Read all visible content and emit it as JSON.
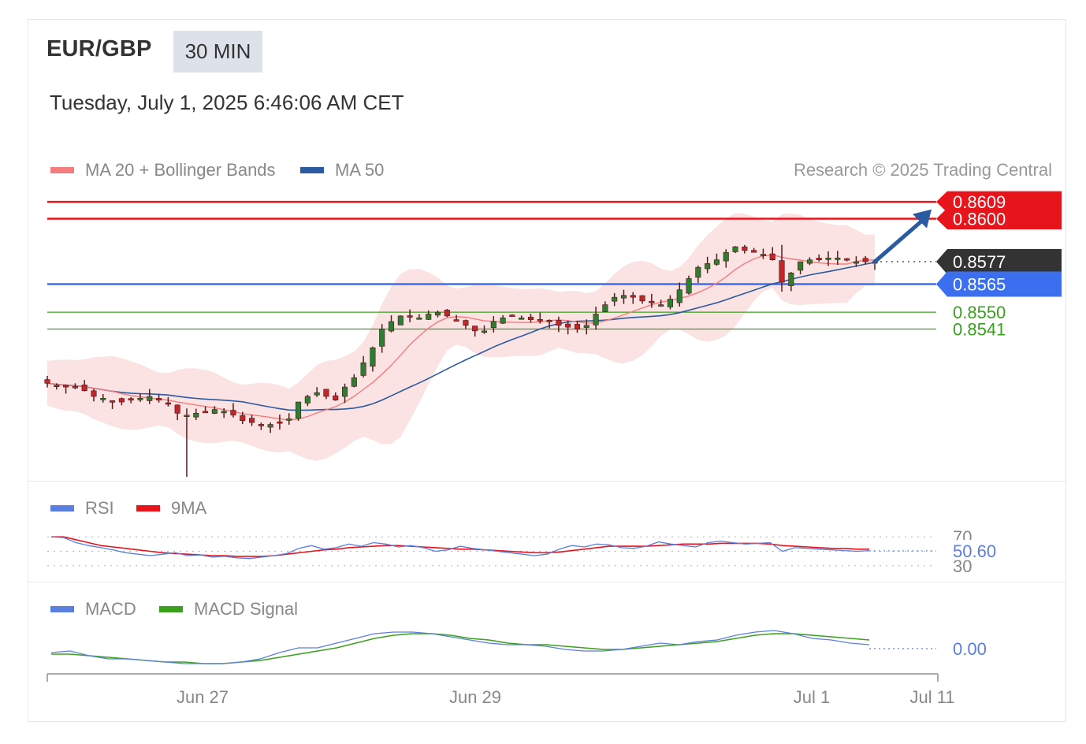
{
  "header": {
    "symbol": "EUR/GBP",
    "timeframe": "30 MIN",
    "timestamp": "Tuesday, July 1, 2025 6:46:06 AM CET"
  },
  "legend": {
    "main": [
      {
        "label": "MA 20 + Bollinger Bands",
        "color": "#f47c7c"
      },
      {
        "label": "MA 50",
        "color": "#2a5aa0"
      }
    ],
    "rsi": [
      {
        "label": "RSI",
        "color": "#5b7fe0"
      },
      {
        "label": "9MA",
        "color": "#e8141c"
      }
    ],
    "macd": [
      {
        "label": "MACD",
        "color": "#5b7fe0"
      },
      {
        "label": "MACD Signal",
        "color": "#3aa01e"
      }
    ],
    "copyright": "Research © 2025 Trading Central"
  },
  "colors": {
    "resistance": "#e8141c",
    "pivot": "#3b6ff0",
    "support": "#3aa01e",
    "current": "#333333",
    "arrow": "#2a5aa0",
    "band_fill": "#fbe3e3",
    "candle_up": "#2f7d32",
    "candle_down": "#c0262c"
  },
  "chart_data": {
    "type": "candlestick",
    "timeframe": "30 MIN",
    "x_axis": {
      "ticks": [
        "Jun 27",
        "Jun 29",
        "Jul 1",
        "Jul 11"
      ]
    },
    "price_range": [
      0.8462,
      0.862
    ],
    "levels": [
      {
        "label": "0.8609",
        "value": 0.8609,
        "kind": "resistance"
      },
      {
        "label": "0.8600",
        "value": 0.86,
        "kind": "resistance"
      },
      {
        "label": "0.8577",
        "value": 0.8577,
        "kind": "current"
      },
      {
        "label": "0.8565",
        "value": 0.8565,
        "kind": "pivot"
      },
      {
        "label": "0.8550",
        "value": 0.855,
        "kind": "support"
      },
      {
        "label": "0.8541",
        "value": 0.8541,
        "kind": "support"
      }
    ],
    "target_arrow": {
      "from": 0.8577,
      "to": 0.8605
    },
    "close_path": [
      0.8512,
      0.8511,
      0.851,
      0.851,
      0.8508,
      0.8505,
      0.8504,
      0.8502,
      0.8502,
      0.8503,
      0.8504,
      0.8505,
      0.8503,
      0.8501,
      0.8496,
      0.8495,
      0.8496,
      0.8497,
      0.8498,
      0.8497,
      0.8495,
      0.8492,
      0.8491,
      0.849,
      0.849,
      0.8491,
      0.8493,
      0.8502,
      0.8505,
      0.8507,
      0.8505,
      0.8503,
      0.851,
      0.8515,
      0.8523,
      0.8531,
      0.8541,
      0.8545,
      0.8548,
      0.8548,
      0.8547,
      0.8549,
      0.855,
      0.8548,
      0.8546,
      0.8543,
      0.854,
      0.854,
      0.8545,
      0.8547,
      0.8548,
      0.8547,
      0.8546,
      0.8546,
      0.8545,
      0.8543,
      0.8542,
      0.8541,
      0.8543,
      0.8549,
      0.8554,
      0.8558,
      0.8559,
      0.8558,
      0.8556,
      0.8555,
      0.8554,
      0.8557,
      0.8562,
      0.8568,
      0.8574,
      0.8576,
      0.8578,
      0.8582,
      0.8585,
      0.8583,
      0.8582,
      0.8581,
      0.8578,
      0.8566,
      0.8571,
      0.8577,
      0.8578,
      0.8578,
      0.8579,
      0.8579,
      0.8578,
      0.8577,
      0.8577,
      0.8577
    ],
    "rsi": {
      "levels": [
        {
          "label": "70",
          "value": 70
        },
        {
          "label": "30",
          "value": 30
        }
      ],
      "last_label": "50.60",
      "last": 50.6,
      "range": [
        20,
        80
      ],
      "rsi_series": [
        70,
        69,
        62,
        58,
        55,
        52,
        48,
        46,
        44,
        46,
        48,
        44,
        45,
        42,
        43,
        41,
        40,
        42,
        44,
        47,
        54,
        58,
        53,
        55,
        60,
        57,
        62,
        60,
        56,
        58,
        55,
        50,
        52,
        57,
        54,
        52,
        50,
        48,
        46,
        44,
        46,
        53,
        58,
        56,
        60,
        59,
        55,
        54,
        57,
        63,
        60,
        58,
        56,
        62,
        64,
        62,
        60,
        61,
        62,
        50,
        55,
        54,
        53,
        52,
        51,
        50,
        51
      ],
      "ma_series": [
        70,
        70,
        66,
        62,
        58,
        56,
        54,
        52,
        50,
        48,
        47,
        46,
        45,
        44,
        44,
        43,
        43,
        43,
        44,
        46,
        48,
        50,
        52,
        53,
        55,
        56,
        57,
        58,
        58,
        57,
        56,
        55,
        54,
        53,
        53,
        52,
        51,
        50,
        49,
        48,
        48,
        49,
        51,
        53,
        55,
        57,
        57,
        57,
        57,
        58,
        59,
        60,
        60,
        60,
        61,
        61,
        61,
        61,
        60,
        58,
        57,
        56,
        55,
        54,
        54,
        53,
        53
      ]
    },
    "macd": {
      "last_label": "0.00",
      "last": 0.0,
      "range": [
        -0.0012,
        0.0016
      ],
      "macd_series": [
        0.0,
        0.0001,
        -0.0002,
        -0.0004,
        -0.0004,
        -0.0005,
        -0.0006,
        -0.0007,
        -0.0007,
        -0.0007,
        -0.0006,
        -0.0004,
        0.0,
        0.0003,
        0.0003,
        0.0006,
        0.0009,
        0.0012,
        0.0013,
        0.0013,
        0.0012,
        0.001,
        0.0008,
        0.0006,
        0.0005,
        0.0005,
        0.0004,
        0.0002,
        0.0001,
        0.0001,
        0.0002,
        0.0004,
        0.0006,
        0.0005,
        0.0007,
        0.0008,
        0.0011,
        0.0013,
        0.0014,
        0.0012,
        0.0009,
        0.0008,
        0.0006,
        0.0005
      ],
      "signal_series": [
        -0.0001,
        -0.0001,
        -0.0002,
        -0.0003,
        -0.0004,
        -0.0005,
        -0.0006,
        -0.0006,
        -0.0007,
        -0.0007,
        -0.0006,
        -0.0005,
        -0.0003,
        -0.0001,
        0.0001,
        0.0003,
        0.0006,
        0.0009,
        0.0011,
        0.0012,
        0.0012,
        0.0011,
        0.0009,
        0.0008,
        0.0006,
        0.0005,
        0.0005,
        0.0004,
        0.0003,
        0.0002,
        0.0002,
        0.0003,
        0.0004,
        0.0005,
        0.0006,
        0.0007,
        0.0009,
        0.0011,
        0.0012,
        0.0012,
        0.0011,
        0.001,
        0.0009,
        0.0008
      ]
    }
  }
}
